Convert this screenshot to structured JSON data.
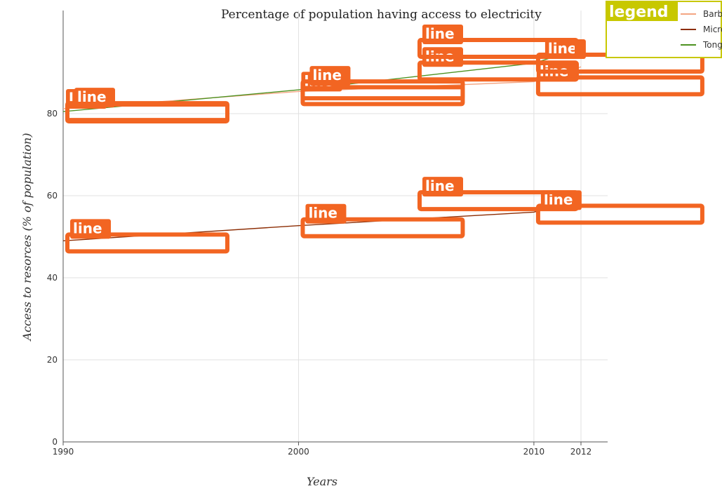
{
  "chart_data": {
    "type": "line",
    "title": "Percentage of population having access to electricity",
    "xlabel": "Years",
    "ylabel": "Access to resorces (% of population)",
    "x": [
      "1990",
      "2000",
      "2010",
      "2012"
    ],
    "x_values": [
      1990,
      2000,
      2010,
      2012
    ],
    "ylim": [
      0,
      100
    ],
    "yticks": [
      0,
      20,
      40,
      60,
      80
    ],
    "grid": true,
    "legend_position": "top-right",
    "legend_title": "legend",
    "annotation_label": "line",
    "series": [
      {
        "name": "Barbuda",
        "color": "#f4a582",
        "values": [
          81.2,
          85.4,
          87.8,
          91.4
        ]
      },
      {
        "name": "Micronesia",
        "color": "#8c2d04",
        "values": [
          49.0,
          52.7,
          56.0,
          59.3
        ]
      },
      {
        "name": "Tonga",
        "color": "#4d9221",
        "values": [
          80.5,
          85.8,
          92.3,
          95.9
        ]
      }
    ],
    "annotation_color": "#f26522"
  }
}
